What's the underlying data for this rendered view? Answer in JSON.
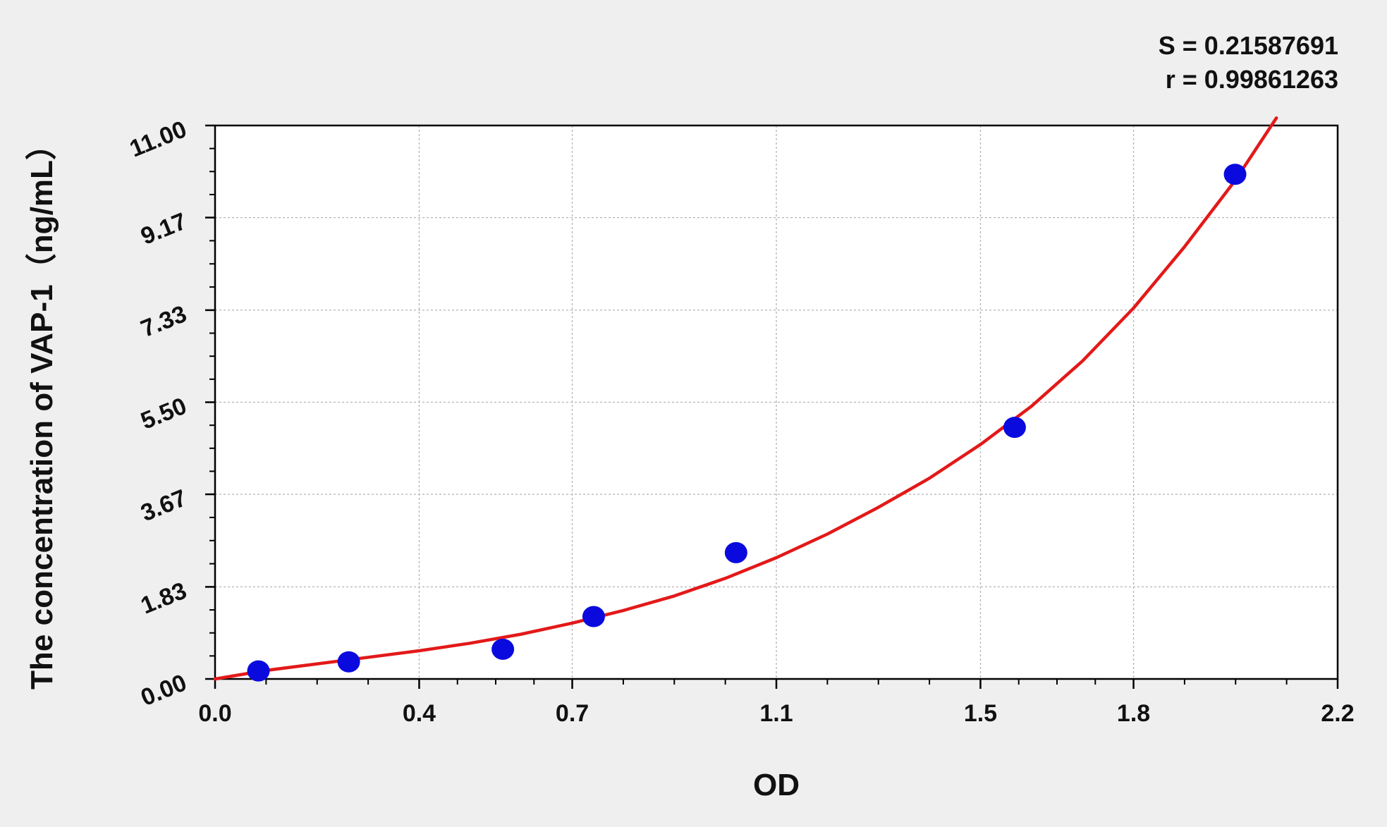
{
  "chart_data": {
    "type": "scatter",
    "title": "",
    "xlabel": "OD",
    "ylabel": "The concentration of VAP-1（ng/mL）",
    "xlim": [
      0.0,
      2.2
    ],
    "ylim": [
      0.0,
      11.0
    ],
    "x_ticks": [
      0.0,
      0.4,
      0.7,
      1.1,
      1.5,
      1.8,
      2.2
    ],
    "x_tick_labels": [
      "0.0",
      "0.4",
      "0.7",
      "1.1",
      "1.5",
      "1.8",
      "2.2"
    ],
    "y_ticks": [
      0.0,
      1.83,
      3.67,
      5.5,
      7.33,
      9.17,
      11.0
    ],
    "y_tick_labels": [
      "0.00",
      "1.83",
      "3.67",
      "5.50",
      "7.33",
      "9.17",
      "11.00"
    ],
    "grid": true,
    "points": {
      "x": [
        0.085,
        0.262,
        0.564,
        0.742,
        1.021,
        1.567,
        1.999
      ],
      "y": [
        0.16,
        0.34,
        0.59,
        1.24,
        2.51,
        5.0,
        10.03
      ]
    },
    "fit_curve": {
      "x": [
        0.0,
        0.1,
        0.2,
        0.3,
        0.4,
        0.5,
        0.6,
        0.7,
        0.8,
        0.9,
        1.0,
        1.1,
        1.2,
        1.3,
        1.4,
        1.5,
        1.6,
        1.7,
        1.8,
        1.9,
        2.0,
        2.08
      ],
      "y": [
        0.0,
        0.17,
        0.3,
        0.43,
        0.56,
        0.71,
        0.89,
        1.11,
        1.36,
        1.65,
        2.0,
        2.41,
        2.88,
        3.41,
        3.99,
        4.66,
        5.42,
        6.32,
        7.37,
        8.59,
        9.92,
        11.15
      ]
    },
    "annotations": {
      "s_label": "S = 0.21587691",
      "r_label": "r = 0.99861263"
    },
    "colors": {
      "points": "#0a0adf",
      "curve": "#e31919",
      "grid": "#b4b4b4",
      "background": "#efefef",
      "plot_area": "#ffffff",
      "axis": "#000000"
    }
  }
}
